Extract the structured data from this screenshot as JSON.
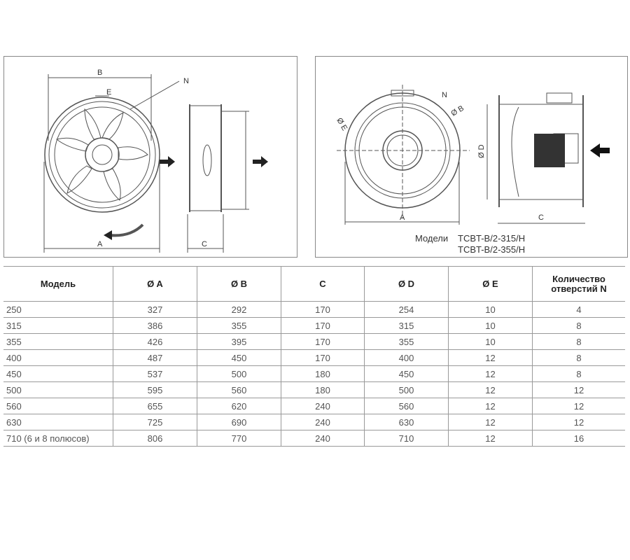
{
  "diagram_left": {
    "labels": {
      "b": "B",
      "e": "E",
      "n": "N",
      "a": "A",
      "c": "C"
    }
  },
  "diagram_right": {
    "labels": {
      "e": "Ø E",
      "b": "Ø B",
      "n": "N",
      "d": "Ø D",
      "a": "A",
      "c": "C"
    },
    "caption_prefix": "Модели",
    "models": [
      "TCBT-B/2-315/H",
      "TCBT-B/2-355/H"
    ]
  },
  "table": {
    "headers": [
      "Модель",
      "Ø A",
      "Ø B",
      "C",
      "Ø D",
      "Ø E",
      "Количество отверстий N"
    ],
    "rows": [
      [
        "250",
        "327",
        "292",
        "170",
        "254",
        "10",
        "4"
      ],
      [
        "315",
        "386",
        "355",
        "170",
        "315",
        "10",
        "8"
      ],
      [
        "355",
        "426",
        "395",
        "170",
        "355",
        "10",
        "8"
      ],
      [
        "400",
        "487",
        "450",
        "170",
        "400",
        "12",
        "8"
      ],
      [
        "450",
        "537",
        "500",
        "180",
        "450",
        "12",
        "8"
      ],
      [
        "500",
        "595",
        "560",
        "180",
        "500",
        "12",
        "12"
      ],
      [
        "560",
        "655",
        "620",
        "240",
        "560",
        "12",
        "12"
      ],
      [
        "630",
        "725",
        "690",
        "240",
        "630",
        "12",
        "12"
      ],
      [
        "710 (6 и 8 полюсов)",
        "806",
        "770",
        "240",
        "710",
        "12",
        "16"
      ]
    ]
  }
}
